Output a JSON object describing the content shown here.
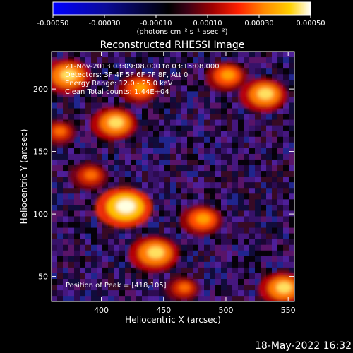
{
  "chart_data": {
    "type": "heatmap",
    "title": "Reconstructed RHESSI Image",
    "xlabel": "Heliocentric X (arcsec)",
    "ylabel": "Heliocentric Y (arcsec)",
    "xlim": [
      360,
      555
    ],
    "ylim": [
      30,
      230
    ],
    "x_ticks": [
      "400",
      "450",
      "500",
      "550"
    ],
    "y_ticks": [
      "50",
      "100",
      "150",
      "200"
    ],
    "colorbar": {
      "range": [
        -0.0005,
        0.0005
      ],
      "tick_labels": [
        "-0.00050",
        "-0.00030",
        "-0.00010",
        "0.00010",
        "0.00030",
        "0.00050"
      ],
      "label": "(photons cm⁻² s⁻¹ asec⁻²)"
    },
    "annotations": [
      "21-Nov-2013 03:09:08.000 to 03:15:08.000",
      "Detectors: 3F 4F 5F 6F 7F 8F, Att 0",
      "Energy Range: 12.0 - 25.0 keV",
      "Clean     Total counts: 1.44E+04"
    ],
    "peak_label": "Position of Peak = [418,105]",
    "peak": [
      418,
      105
    ],
    "bright_regions": [
      {
        "x": 418,
        "y": 105,
        "value": 0.00048
      },
      {
        "x": 442,
        "y": 68,
        "value": 0.0004
      },
      {
        "x": 410,
        "y": 172,
        "value": 0.00035
      },
      {
        "x": 372,
        "y": 210,
        "value": 0.00038
      },
      {
        "x": 530,
        "y": 195,
        "value": 0.00036
      },
      {
        "x": 480,
        "y": 95,
        "value": 0.0003
      },
      {
        "x": 545,
        "y": 40,
        "value": 0.00035
      },
      {
        "x": 430,
        "y": 200,
        "value": 0.00028
      },
      {
        "x": 390,
        "y": 130,
        "value": 0.00025
      },
      {
        "x": 500,
        "y": 210,
        "value": 0.00028
      },
      {
        "x": 365,
        "y": 165,
        "value": 0.00022
      },
      {
        "x": 465,
        "y": 40,
        "value": 0.0002
      }
    ]
  },
  "footer_timestamp": "18-May-2022 16:32"
}
